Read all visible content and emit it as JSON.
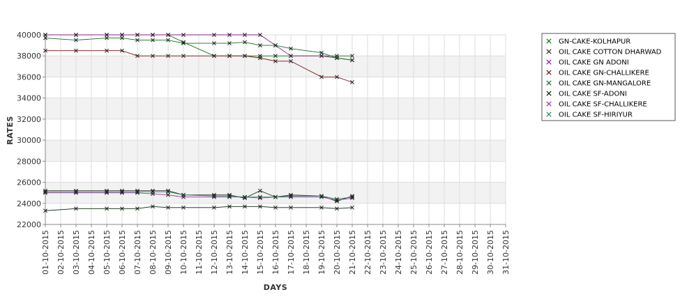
{
  "chart_data": {
    "type": "line",
    "title": "",
    "xlabel": "DAYS",
    "ylabel": "RATES",
    "ylim": [
      22000,
      40000
    ],
    "yticks": [
      22000,
      24000,
      26000,
      28000,
      30000,
      32000,
      34000,
      36000,
      38000,
      40000
    ],
    "ytick_labels": [
      "22000",
      "24000",
      "26000",
      "28000",
      "30000",
      "32000",
      "34000",
      "36000",
      "38000",
      "40000"
    ],
    "x_start": "2015-10-01",
    "x_end": "2015-10-31",
    "xtick_labels": [
      "01-10-2015",
      "02-10-2015",
      "03-10-2015",
      "04-10-2015",
      "05-10-2015",
      "06-10-2015",
      "07-10-2015",
      "08-10-2015",
      "09-10-2015",
      "10-10-2015",
      "11-10-2015",
      "12-10-2015",
      "13-10-2015",
      "14-10-2015",
      "15-10-2015",
      "16-10-2015",
      "17-10-2015",
      "18-10-2015",
      "19-10-2015",
      "20-10-2015",
      "21-10-2015",
      "22-10-2015",
      "23-10-2015",
      "24-10-2015",
      "25-10-2015",
      "26-10-2015",
      "27-10-2015",
      "28-10-2015",
      "29-10-2015",
      "30-10-2015",
      "31-10-2015"
    ],
    "grid": true,
    "background_bands": "alternating light grey horizontal bands",
    "legend_position": "right",
    "x": [
      "2015-10-01",
      "2015-10-03",
      "2015-10-05",
      "2015-10-06",
      "2015-10-07",
      "2015-10-08",
      "2015-10-09",
      "2015-10-10",
      "2015-10-12",
      "2015-10-13",
      "2015-10-14",
      "2015-10-15",
      "2015-10-16",
      "2015-10-17",
      "2015-10-19",
      "2015-10-20",
      "2015-10-21"
    ],
    "series": [
      {
        "name": "GN-CAKE-KOLHAPUR",
        "color": "#117711",
        "values": [
          40000,
          40000,
          40000,
          40000,
          40000,
          40000,
          40000,
          39300,
          38000,
          38000,
          38000,
          38000,
          38000,
          38000,
          38000,
          38000,
          38000
        ]
      },
      {
        "name": "OIL CAKE COTTON DHARWAD",
        "color": "#223322",
        "values": [
          25200,
          25200,
          25200,
          25200,
          25200,
          25200,
          25200,
          24800,
          24800,
          24800,
          24500,
          25200,
          24600,
          24800,
          24700,
          24200,
          24700
        ]
      },
      {
        "name": "OIL CAKE GN ADONI",
        "color": "#8a208a",
        "values": [
          40000,
          40000,
          40000,
          40000,
          40000,
          40000,
          40000,
          40000,
          40000,
          40000,
          40000,
          40000,
          39000,
          38000,
          38000,
          37800,
          37600
        ]
      },
      {
        "name": "OIL CAKE GN-CHALLIKERE",
        "color": "#771111",
        "values": [
          38500,
          38500,
          38500,
          38500,
          38000,
          38000,
          38000,
          38000,
          38000,
          38000,
          38000,
          37800,
          37500,
          37500,
          36000,
          36000,
          35500
        ]
      },
      {
        "name": "OIL CAKE GN-MANGALORE",
        "color": "#1a6b2a",
        "values": [
          39700,
          39500,
          39700,
          39700,
          39500,
          39500,
          39500,
          39200,
          39200,
          39200,
          39300,
          39000,
          39000,
          38700,
          38300,
          37800,
          37600
        ]
      },
      {
        "name": "OIL CAKE SF-ADONI",
        "color": "#0a220a",
        "values": [
          23300,
          23500,
          23500,
          23500,
          23500,
          23700,
          23600,
          23600,
          23600,
          23700,
          23700,
          23700,
          23600,
          23600,
          23600,
          23500,
          23600
        ]
      },
      {
        "name": "OIL CAKE SF-CHALLIKERE",
        "color": "#9933aa",
        "values": [
          25000,
          25000,
          25000,
          25000,
          25000,
          24900,
          24800,
          24600,
          24600,
          24600,
          24600,
          24500,
          24600,
          24600,
          24600,
          24300,
          24500
        ]
      },
      {
        "name": "OIL CAKE SF-HIRIYUR",
        "color": "#2b8a5a",
        "values": [
          25100,
          25100,
          25100,
          25100,
          25100,
          25100,
          25100,
          24800,
          24700,
          24700,
          24600,
          24600,
          24600,
          24700,
          24700,
          24400,
          24600
        ]
      }
    ]
  }
}
